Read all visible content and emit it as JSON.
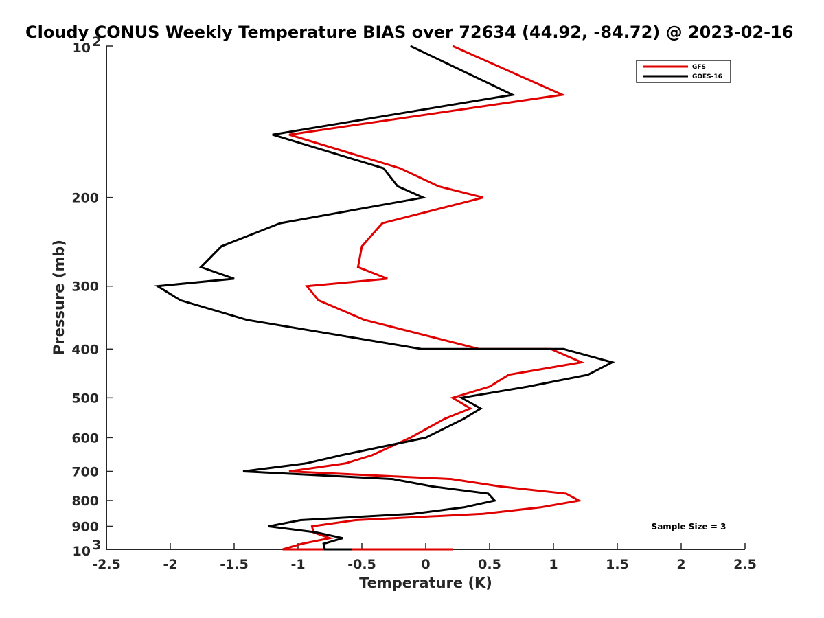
{
  "chart_data": {
    "type": "line",
    "title": "Cloudy CONUS Weekly Temperature BIAS over 72634 (44.92, -84.72) @ 2023-02-16",
    "xlabel": "Temperature (K)",
    "ylabel": "Pressure (mb)",
    "xlim": [
      -2.5,
      2.5
    ],
    "ylim": [
      1000,
      100
    ],
    "yscale": "log",
    "xticks": [
      -2.5,
      -2,
      -1.5,
      -1,
      -0.5,
      0,
      0.5,
      1,
      1.5,
      2,
      2.5
    ],
    "xtick_labels": [
      "-2.5",
      "-2",
      "-1.5",
      "-1",
      "-0.5",
      "0",
      "0.5",
      "1",
      "1.5",
      "2",
      "2.5"
    ],
    "yticks": [
      {
        "value": 100,
        "base": "10",
        "exp": "2"
      },
      {
        "value": 200,
        "label": "200"
      },
      {
        "value": 300,
        "label": "300"
      },
      {
        "value": 400,
        "label": "400"
      },
      {
        "value": 500,
        "label": "500"
      },
      {
        "value": 600,
        "label": "600"
      },
      {
        "value": 700,
        "label": "700"
      },
      {
        "value": 800,
        "label": "800"
      },
      {
        "value": 900,
        "label": "900"
      },
      {
        "value": 1000,
        "base": "10",
        "exp": "3"
      }
    ],
    "grid": false,
    "legend_position": "top-right",
    "annotation": "Sample Size = 3",
    "series": [
      {
        "name": "GFS",
        "color": "#e00000",
        "points": [
          [
            0.21,
            100
          ],
          [
            1.07,
            125
          ],
          [
            -1.07,
            150
          ],
          [
            -0.2,
            175
          ],
          [
            0.1,
            190
          ],
          [
            0.45,
            200
          ],
          [
            -0.34,
            225
          ],
          [
            -0.5,
            250
          ],
          [
            -0.53,
            275
          ],
          [
            -0.3,
            290
          ],
          [
            -0.93,
            300
          ],
          [
            -0.84,
            320
          ],
          [
            -0.48,
            350
          ],
          [
            0.42,
            400
          ],
          [
            0.98,
            400
          ],
          [
            1.22,
            425
          ],
          [
            0.65,
            450
          ],
          [
            0.5,
            475
          ],
          [
            0.21,
            500
          ],
          [
            0.35,
            525
          ],
          [
            0.15,
            550
          ],
          [
            -0.12,
            600
          ],
          [
            -0.42,
            650
          ],
          [
            -0.63,
            675
          ],
          [
            -1.07,
            700
          ],
          [
            0.2,
            725
          ],
          [
            0.58,
            750
          ],
          [
            1.1,
            775
          ],
          [
            1.2,
            800
          ],
          [
            0.9,
            825
          ],
          [
            0.45,
            850
          ],
          [
            -0.55,
            875
          ],
          [
            -0.89,
            900
          ],
          [
            -0.88,
            925
          ],
          [
            -0.75,
            950
          ],
          [
            -0.97,
            975
          ],
          [
            -1.12,
            1000
          ],
          [
            0.21,
            1000
          ]
        ]
      },
      {
        "name": "GOES-16",
        "color": "#000000",
        "points": [
          [
            -0.12,
            100
          ],
          [
            0.68,
            125
          ],
          [
            -1.2,
            150
          ],
          [
            -0.33,
            175
          ],
          [
            -0.22,
            190
          ],
          [
            -0.02,
            200
          ],
          [
            -1.14,
            225
          ],
          [
            -1.6,
            250
          ],
          [
            -1.76,
            275
          ],
          [
            -1.5,
            290
          ],
          [
            -2.1,
            300
          ],
          [
            -1.92,
            320
          ],
          [
            -1.4,
            350
          ],
          [
            -0.03,
            400
          ],
          [
            1.08,
            400
          ],
          [
            1.46,
            425
          ],
          [
            1.27,
            450
          ],
          [
            0.8,
            475
          ],
          [
            0.28,
            500
          ],
          [
            0.43,
            525
          ],
          [
            0.3,
            550
          ],
          [
            0.0,
            600
          ],
          [
            -0.66,
            650
          ],
          [
            -0.94,
            675
          ],
          [
            -1.43,
            700
          ],
          [
            -0.26,
            725
          ],
          [
            0.05,
            750
          ],
          [
            0.49,
            775
          ],
          [
            0.54,
            800
          ],
          [
            0.3,
            825
          ],
          [
            -0.1,
            850
          ],
          [
            -0.98,
            875
          ],
          [
            -1.23,
            900
          ],
          [
            -0.86,
            925
          ],
          [
            -0.65,
            950
          ],
          [
            -0.8,
            975
          ],
          [
            -0.79,
            1000
          ],
          [
            -0.58,
            1000
          ]
        ]
      }
    ]
  }
}
